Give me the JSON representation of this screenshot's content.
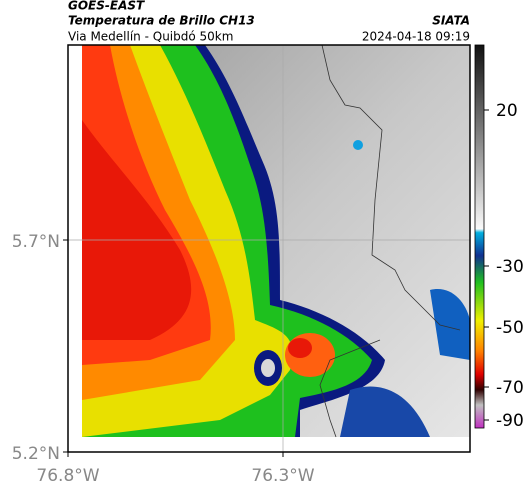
{
  "header": {
    "line1": "GOES-EAST",
    "line2": "Temperatura de Brillo CH13",
    "line3": "Via Medellín - Quibdó 50km",
    "source": "SIATA",
    "datetime": "2024-04-18 09:19"
  },
  "axes": {
    "x_labels": [
      "76.8°W",
      "76.3°W"
    ],
    "y_labels": [
      "5.7°N",
      "5.2°N"
    ]
  },
  "colorbar": {
    "labels": [
      "20",
      "-30",
      "-50",
      "-70",
      "-90"
    ]
  }
}
